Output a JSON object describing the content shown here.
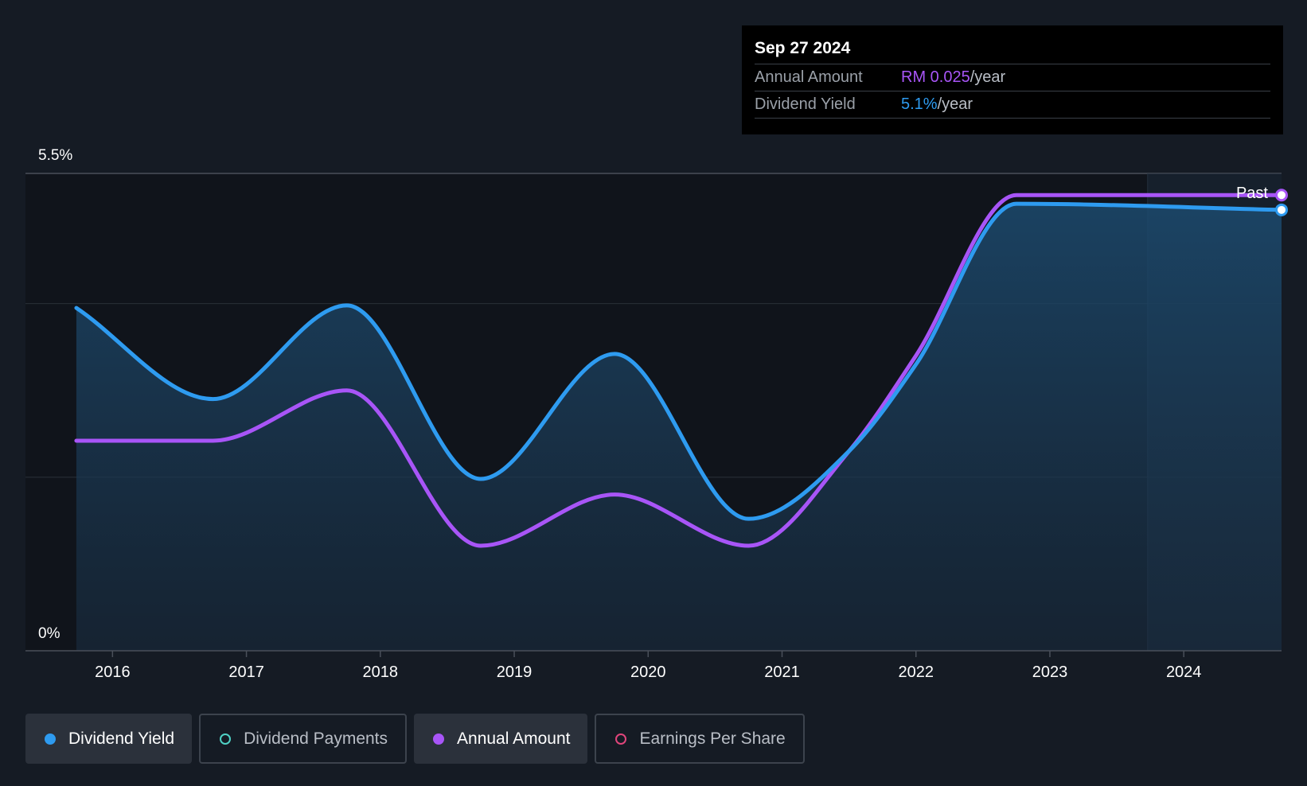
{
  "tooltip": {
    "date": "Sep 27 2024",
    "rows": [
      {
        "label": "Annual Amount",
        "value": "RM 0.025",
        "unit": "/year"
      },
      {
        "label": "Dividend Yield",
        "value": "5.1%",
        "unit": "/year"
      }
    ]
  },
  "chart_data": {
    "type": "line",
    "ylabel_top": "5.5%",
    "ylabel_bottom": "0%",
    "ylim": [
      0,
      5.5
    ],
    "x_ticks": [
      "2016",
      "2017",
      "2018",
      "2019",
      "2020",
      "2021",
      "2022",
      "2023",
      "2024"
    ],
    "x_range": [
      2015.35,
      2024.73
    ],
    "past_label": "Past",
    "forecast_start": 2023.73,
    "grid": true,
    "series": [
      {
        "name": "Dividend Yield",
        "color": "#2e9bf0",
        "filled": true,
        "points": [
          [
            2015.73,
            3.95
          ],
          [
            2016.75,
            2.9
          ],
          [
            2017.75,
            3.98
          ],
          [
            2018.75,
            1.98
          ],
          [
            2019.75,
            3.42
          ],
          [
            2020.75,
            1.52
          ],
          [
            2021.5,
            2.3
          ],
          [
            2022.0,
            3.3
          ],
          [
            2022.75,
            5.15
          ],
          [
            2024.73,
            5.08
          ]
        ]
      },
      {
        "name": "Annual Amount",
        "color": "#a855f7",
        "filled": false,
        "points": [
          [
            2015.73,
            2.42
          ],
          [
            2016.75,
            2.42
          ],
          [
            2017.75,
            3.0
          ],
          [
            2018.75,
            1.21
          ],
          [
            2019.75,
            1.8
          ],
          [
            2020.75,
            1.21
          ],
          [
            2021.5,
            2.3
          ],
          [
            2022.0,
            3.4
          ],
          [
            2022.75,
            5.25
          ],
          [
            2024.73,
            5.25
          ]
        ]
      }
    ]
  },
  "legend": [
    {
      "label": "Dividend Yield",
      "color": "#2e9bf0",
      "active": true
    },
    {
      "label": "Dividend Payments",
      "color": "#4fd1c5",
      "active": false
    },
    {
      "label": "Annual Amount",
      "color": "#a855f7",
      "active": true
    },
    {
      "label": "Earnings Per Share",
      "color": "#e0457b",
      "active": false
    }
  ]
}
